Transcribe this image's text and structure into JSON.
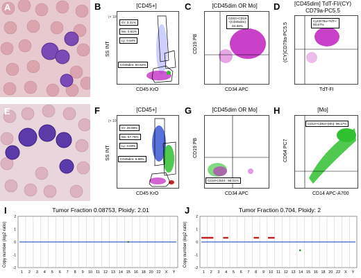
{
  "panels": {
    "A": {
      "label": "A"
    },
    "B": {
      "label": "B",
      "title": "[CD45+]",
      "xlabel": "CD45 KrO",
      "ylabel": "SS INT",
      "yscale": "(× 10³)",
      "gates": [
        {
          "text": "Gr: 3.31%"
        },
        {
          "text": "Mo: 0.61%"
        },
        {
          "text": "Ly: 0.64%"
        },
        {
          "text": "CD45dim: 94.62%"
        }
      ]
    },
    "C": {
      "label": "C",
      "title": "[CD45dim OR Mo]",
      "xlabel": "CD34 APC",
      "ylabel": "CD19 PB",
      "gates": [
        {
          "text": "CD34+CD19\n+(CD45dim):\n84.58%"
        }
      ]
    },
    "D": {
      "label": "D",
      "title": "[CD45dim] TdT-FI/(CY)",
      "subtitle": "CD79a-PC5.5",
      "xlabel": "TdT-FI",
      "ylabel": "(CY)CD79a-PC5.5",
      "gates": [
        {
          "text": "CyCD79a+TdT+:\n93.67%"
        }
      ]
    },
    "E": {
      "label": "E"
    },
    "F": {
      "label": "F",
      "title": "[CD45+]",
      "xlabel": "CD45 KrO",
      "ylabel": "SS INT",
      "yscale": "(× 10³)",
      "gates": [
        {
          "text": "Gr: 28.98%"
        },
        {
          "text": "Mo: 57.75%"
        },
        {
          "text": "Ly: 3.03%"
        },
        {
          "text": "CD45dim: 5.88%"
        }
      ]
    },
    "G": {
      "label": "G",
      "title": "[CD45dim OR Mo]",
      "xlabel": "CD34 APC",
      "ylabel": "CD19 PB",
      "gates": [
        {
          "text": "CD19-CD34-: 98.01%"
        }
      ]
    },
    "H": {
      "label": "H",
      "title": "[Mo]",
      "xlabel": "CD14 APC-A700",
      "ylabel": "CD64 PC7",
      "gates": [
        {
          "text": "CD14+CD64+(Mo): 98.17%"
        }
      ]
    },
    "I": {
      "label": "I",
      "title": "Tumor Fraction 0.08753, Ploidy: 2.01",
      "ylabel": "Copy number (log2 ratio)"
    },
    "J": {
      "label": "J",
      "title": "Tumor Fraction 0.704, Ploidy: 2",
      "ylabel": "Copy number (log2 ratio)"
    }
  },
  "cnv_axis": {
    "chromosomes": [
      "1",
      "2",
      "3",
      "4",
      "5",
      "6",
      "7",
      "8",
      "9",
      "10",
      "11",
      "12",
      "13",
      "14",
      "15",
      "16",
      "18",
      "20",
      "22",
      "X",
      "Y"
    ],
    "yticks": [
      "2",
      "1",
      "0",
      "-1",
      "-2"
    ]
  },
  "log_ticks": [
    "10⁴",
    "10³",
    "10²",
    "10¹"
  ],
  "colors": {
    "blast": "#c020c0",
    "mono": "#30c030",
    "gran": "#2040d0",
    "cnv_neutral": "#3060c0",
    "cnv_gain": "#c02020",
    "cnv_loss": "#208020"
  }
}
